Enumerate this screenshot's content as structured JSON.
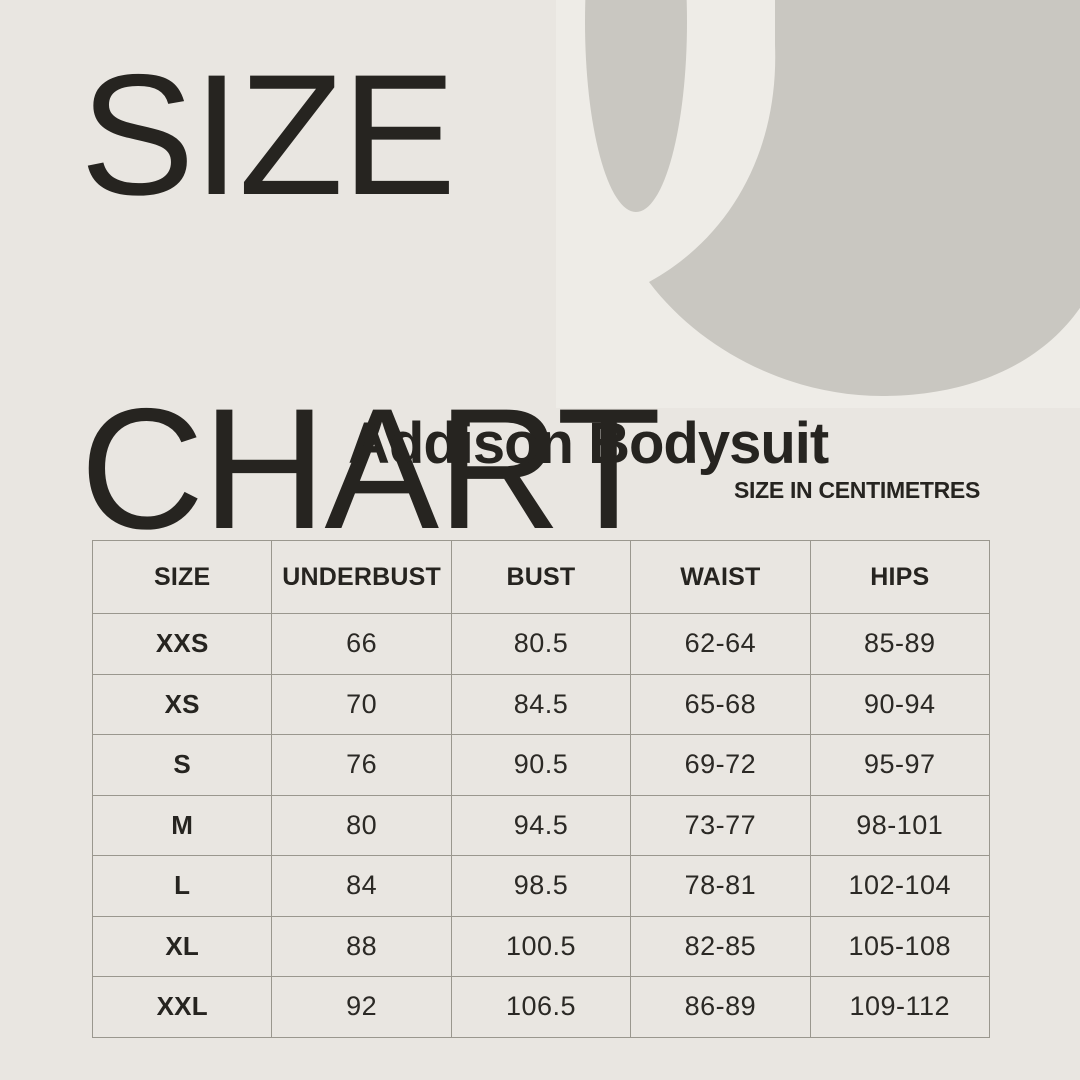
{
  "colors": {
    "background": "#e9e6e1",
    "panel": "#eeece7",
    "decor_shape": "#c9c7c1",
    "text": "#262420",
    "table_border": "#9a978e"
  },
  "title": {
    "line1": "SIZE",
    "line2": "CHART"
  },
  "product_title": "Addison Bodysuit",
  "unit_note": "SIZE IN CENTIMETRES",
  "decor": {
    "shape_name": "letter-u-shape"
  },
  "chart_data": {
    "type": "table",
    "title": "Addison Bodysuit",
    "unit": "SIZE IN CENTIMETRES",
    "columns": [
      "SIZE",
      "UNDERBUST",
      "BUST",
      "WAIST",
      "HIPS"
    ],
    "rows": [
      [
        "XXS",
        "66",
        "80.5",
        "62-64",
        "85-89"
      ],
      [
        "XS",
        "70",
        "84.5",
        "65-68",
        "90-94"
      ],
      [
        "S",
        "76",
        "90.5",
        "69-72",
        "95-97"
      ],
      [
        "M",
        "80",
        "94.5",
        "73-77",
        "98-101"
      ],
      [
        "L",
        "84",
        "98.5",
        "78-81",
        "102-104"
      ],
      [
        "XL",
        "88",
        "100.5",
        "82-85",
        "105-108"
      ],
      [
        "XXL",
        "92",
        "106.5",
        "86-89",
        "109-112"
      ]
    ]
  }
}
